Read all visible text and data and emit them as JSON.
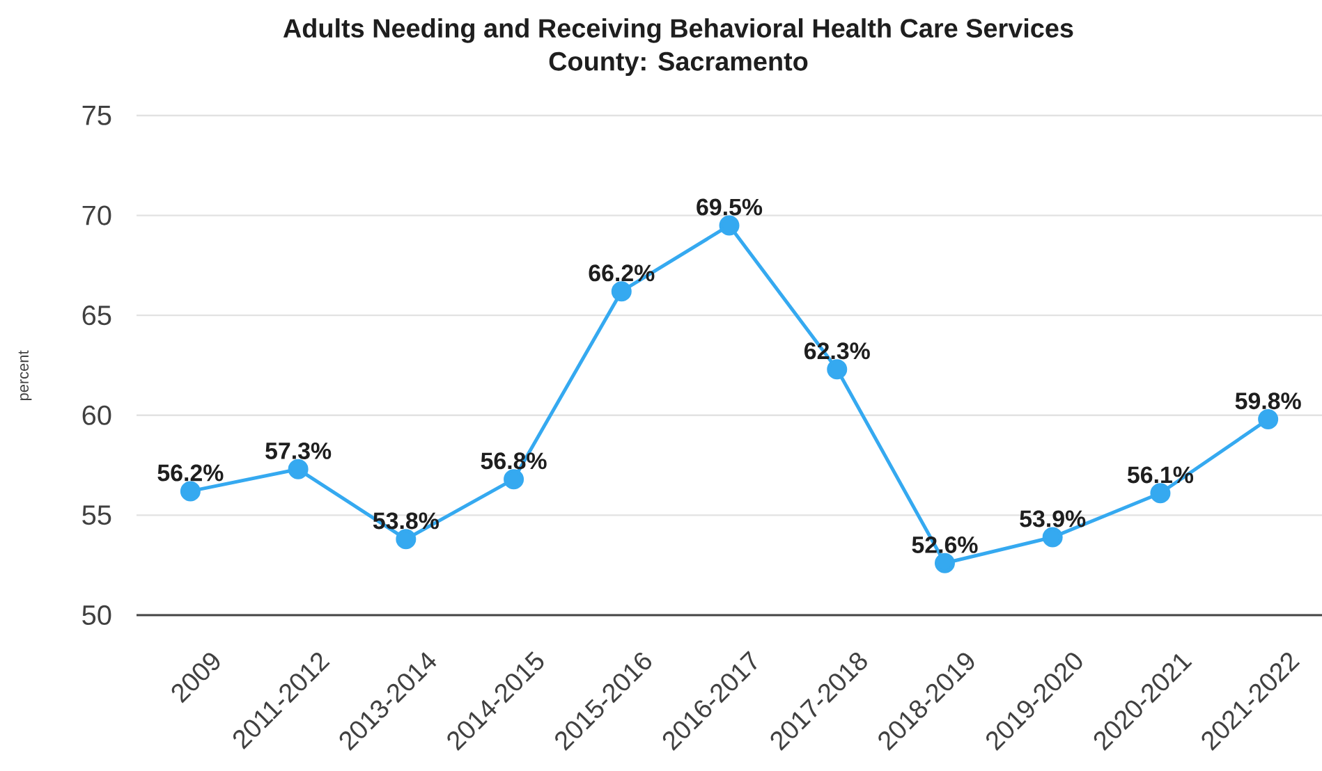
{
  "chart_data": {
    "type": "line",
    "title": "Adults Needing and Receiving Behavioral Health Care Services",
    "subtitle": "County: Sacramento",
    "ylabel": "percent",
    "categories": [
      "2009",
      "2011-2012",
      "2013-2014",
      "2014-2015",
      "2015-2016",
      "2016-2017",
      "2017-2018",
      "2018-2019",
      "2019-2020",
      "2020-2021",
      "2021-2022"
    ],
    "values": [
      56.2,
      57.3,
      53.8,
      56.8,
      66.2,
      69.5,
      62.3,
      52.6,
      53.9,
      56.1,
      59.8
    ],
    "value_labels": [
      "56.2%",
      "57.3%",
      "53.8%",
      "56.8%",
      "66.2%",
      "69.5%",
      "62.3%",
      "52.6%",
      "53.9%",
      "56.1%",
      "59.8%"
    ],
    "color": "#35a9f0",
    "marker": "circle",
    "line_style": "solid",
    "ylim": [
      50,
      75
    ],
    "yticks": [
      50,
      55,
      60,
      65,
      70,
      75
    ],
    "grid": "y"
  }
}
